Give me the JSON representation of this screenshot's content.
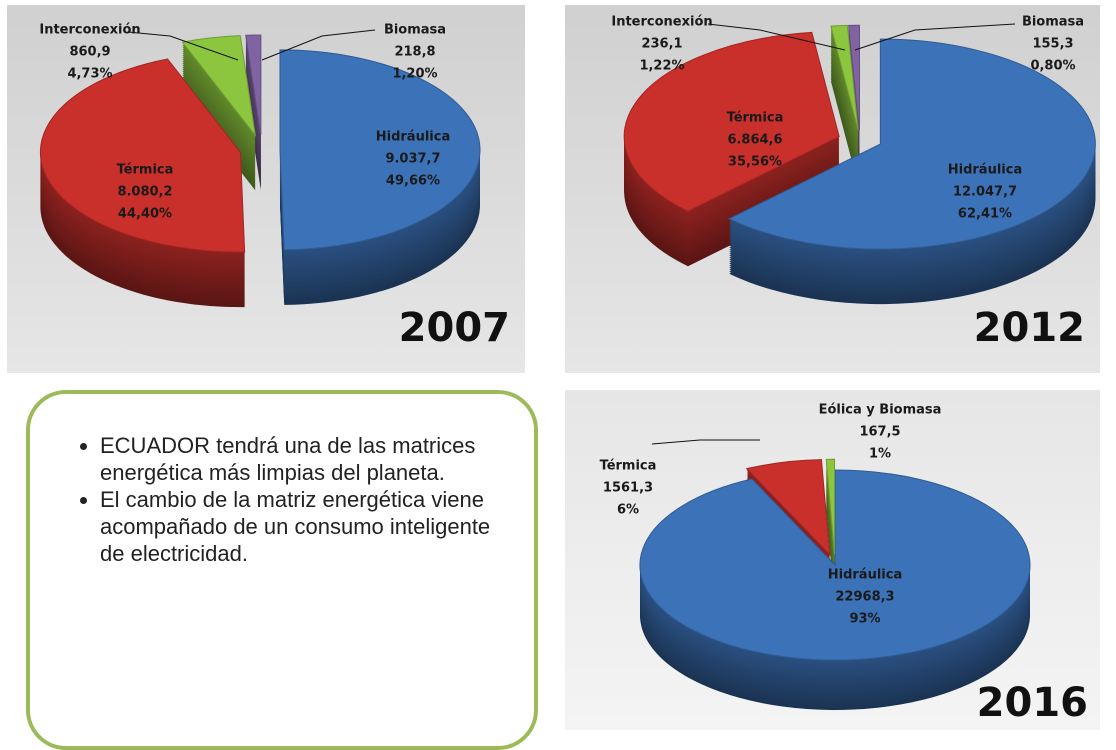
{
  "chart_data": [
    {
      "type": "pie",
      "title": "2007",
      "categories": [
        "Hidráulica",
        "Térmica",
        "Interconexión",
        "Biomasa"
      ],
      "values": [
        9037.7,
        8080.2,
        860.9,
        218.8
      ],
      "value_labels": [
        "9.037,7",
        "8.080,2",
        "860,9",
        "218,8"
      ],
      "percentages": [
        49.66,
        44.4,
        4.73,
        1.2
      ],
      "percent_labels": [
        "49,66%",
        "44,40%",
        "4,73%",
        "1,20%"
      ],
      "colors": [
        "#3c72b8",
        "#c9302c",
        "#8cc63e",
        "#8064a2"
      ]
    },
    {
      "type": "pie",
      "title": "2012",
      "categories": [
        "Hidráulica",
        "Térmica",
        "Interconexión",
        "Biomasa"
      ],
      "values": [
        12047.7,
        6864.6,
        236.1,
        155.3
      ],
      "value_labels": [
        "12.047,7",
        "6.864,6",
        "236,1",
        "155,3"
      ],
      "percentages": [
        62.41,
        35.56,
        1.22,
        0.8
      ],
      "percent_labels": [
        "62,41%",
        "35,56%",
        "1,22%",
        "0,80%"
      ],
      "colors": [
        "#3c72b8",
        "#c9302c",
        "#8cc63e",
        "#8064a2"
      ]
    },
    {
      "type": "pie",
      "title": "2016",
      "categories": [
        "Hidráulica",
        "Térmica",
        "Eólica y Biomasa"
      ],
      "values": [
        22968.3,
        1561.3,
        167.5
      ],
      "value_labels": [
        "22968,3",
        "1561,3",
        "167,5"
      ],
      "percentages": [
        93,
        6,
        1
      ],
      "percent_labels": [
        "93%",
        "6%",
        "1%"
      ],
      "colors": [
        "#3c72b8",
        "#c9302c",
        "#8cc63e"
      ]
    }
  ],
  "text_box": {
    "bullets": [
      "ECUADOR tendrá una de las matrices energética más limpias del planeta.",
      "El cambio de la matriz energética viene acompañado de un consumo inteligente de electricidad."
    ]
  }
}
